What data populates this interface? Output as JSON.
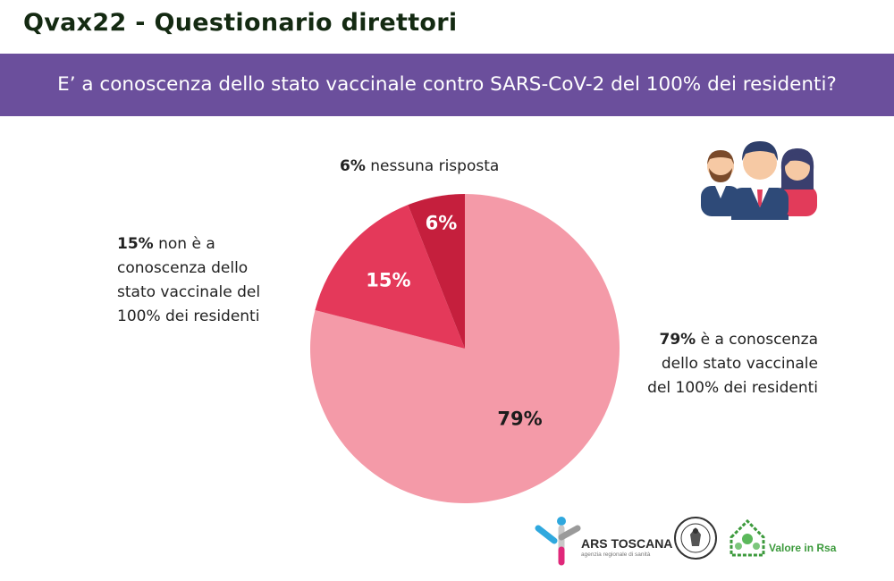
{
  "header": {
    "title": "Qvax22 - Questionario direttori",
    "question": "E’ a conoscenza dello stato vaccinale contro SARS-CoV-2 del 100% dei residenti?"
  },
  "colors": {
    "banner": "#6b4f9c",
    "title": "#142a12"
  },
  "chart_data": {
    "type": "pie",
    "title": "",
    "start": "12 o'clock, clockwise",
    "slices": [
      {
        "label": "è a conoscenza dello stato vaccinale del 100% dei residenti",
        "value": 79,
        "value_label": "79%",
        "color": "#f49aa8",
        "text_color": "#1c1c1c"
      },
      {
        "label": "non è a conoscenza dello stato vaccinale del 100% dei residenti",
        "value": 15,
        "value_label": "15%",
        "color": "#e4395a",
        "text_color": "#ffffff"
      },
      {
        "label": "nessuna risposta",
        "value": 6,
        "value_label": "6%",
        "color": "#c51f3d",
        "text_color": "#ffffff"
      }
    ]
  },
  "callouts": {
    "none": {
      "pct": "6%",
      "text": " nessuna risposta"
    },
    "no": {
      "pct": "15%",
      "text": " non è a conoscenza dello stato vaccinale del 100% dei residenti"
    },
    "yes": {
      "pct": "79%",
      "text": " è a conoscenza dello stato vaccinale del 100% dei residenti"
    }
  },
  "logos": {
    "ars": "ARS TOSCANA",
    "ars_sub": "agenzia regionale di sanità",
    "rsa": "Valore in Rsa"
  },
  "icons": [
    "people-group-icon",
    "ars-logo",
    "university-seal",
    "valore-in-rsa-logo"
  ]
}
